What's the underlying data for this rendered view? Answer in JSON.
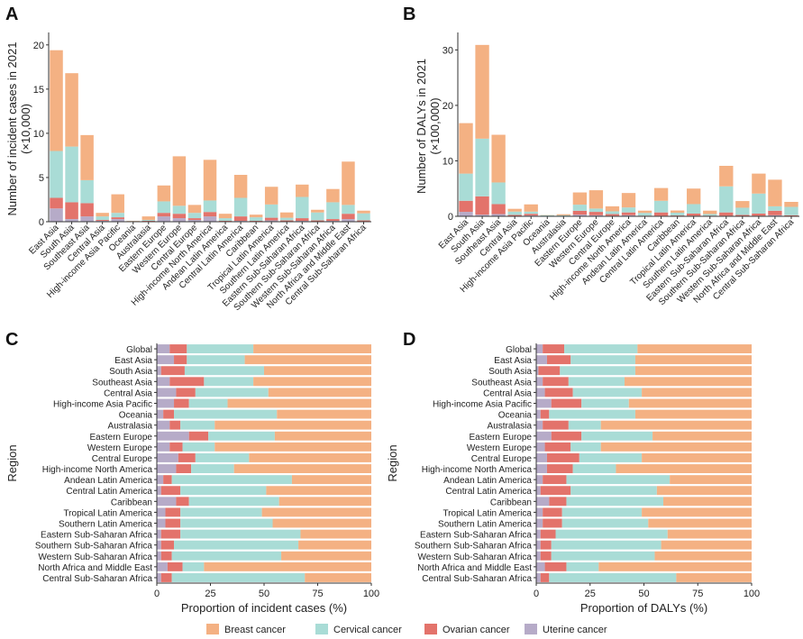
{
  "colors": {
    "Breast cancer": "#f4b183",
    "Cervical cancer": "#a9dcd6",
    "Ovarian cancer": "#e3736b",
    "Uterine cancer": "#b6abc8"
  },
  "legend": [
    "Breast cancer",
    "Cervical cancer",
    "Ovarian cancer",
    "Uterine cancer"
  ],
  "chart_data": [
    {
      "panel": "A",
      "type": "bar",
      "stacked": true,
      "ylabel": "Number of incident cases in 2021",
      "ylabel2": "(×10,000)",
      "ylim": [
        0,
        21
      ],
      "yticks": [
        0,
        5,
        10,
        15,
        20
      ],
      "categories": [
        "East Asia",
        "South Asia",
        "Southeast Asia",
        "Central Asia",
        "High-income Asia Pacific",
        "Oceania",
        "Australasia",
        "Eastern Europe",
        "Western Europe",
        "Central Europe",
        "High-income North America",
        "Andean Latin America",
        "Central Latin America",
        "Caribbean",
        "Tropical Latin America",
        "Southern Latin America",
        "Eastern Sub-Saharan Africa",
        "Southern Sub-Saharan Africa",
        "Western Sub-Saharan Africa",
        "North Africa and Middle East",
        "Central Sub-Saharan Africa"
      ],
      "series": [
        {
          "name": "Uterine cancer",
          "values": [
            1.5,
            0.3,
            0.6,
            0.1,
            0.3,
            0.0,
            0.05,
            0.6,
            0.4,
            0.2,
            0.6,
            0.05,
            0.1,
            0.05,
            0.15,
            0.05,
            0.1,
            0.05,
            0.1,
            0.3,
            0.05
          ]
        },
        {
          "name": "Ovarian cancer",
          "values": [
            1.2,
            1.9,
            1.5,
            0.1,
            0.2,
            0.02,
            0.05,
            0.4,
            0.5,
            0.2,
            0.5,
            0.05,
            0.5,
            0.05,
            0.3,
            0.1,
            0.3,
            0.1,
            0.2,
            0.6,
            0.1
          ]
        },
        {
          "name": "Cervical cancer",
          "values": [
            5.3,
            6.3,
            2.6,
            0.4,
            0.5,
            0.05,
            0.1,
            1.3,
            0.9,
            0.6,
            1.3,
            0.3,
            2.1,
            0.4,
            1.5,
            0.3,
            2.4,
            0.9,
            1.9,
            1.0,
            0.8
          ]
        },
        {
          "name": "Breast cancer",
          "values": [
            11.4,
            8.3,
            5.1,
            0.4,
            2.1,
            0.03,
            0.4,
            1.8,
            5.6,
            0.9,
            4.6,
            0.5,
            2.6,
            0.3,
            2.0,
            0.6,
            1.4,
            0.3,
            1.5,
            4.9,
            0.3
          ]
        }
      ]
    },
    {
      "panel": "B",
      "type": "bar",
      "stacked": true,
      "ylabel": "Number of DALYs in 2021",
      "ylabel2": "(×100,000)",
      "ylim": [
        0,
        32.5
      ],
      "yticks": [
        0,
        10,
        20,
        30
      ],
      "categories": [
        "East Asia",
        "South Asia",
        "Southeast Asia",
        "Central Asia",
        "High-income Asia Pacific",
        "Oceania",
        "Australasia",
        "Eastern Europe",
        "Western Europe",
        "Central Europe",
        "High-income North America",
        "Andean Latin America",
        "Central Latin America",
        "Caribbean",
        "Tropical Latin America",
        "Southern Latin America",
        "Eastern Sub-Saharan Africa",
        "Southern Sub-Saharan Africa",
        "Western Sub-Saharan Africa",
        "North Africa and Middle East",
        "Central Sub-Saharan Africa"
      ],
      "series": [
        {
          "name": "Uterine cancer",
          "values": [
            0.8,
            0.3,
            0.4,
            0.05,
            0.15,
            0.02,
            0.02,
            0.3,
            0.2,
            0.1,
            0.2,
            0.02,
            0.1,
            0.05,
            0.1,
            0.02,
            0.1,
            0.05,
            0.1,
            0.2,
            0.05
          ]
        },
        {
          "name": "Ovarian cancer",
          "values": [
            2.0,
            3.3,
            1.8,
            0.2,
            0.3,
            0.05,
            0.05,
            0.7,
            0.6,
            0.3,
            0.5,
            0.1,
            0.6,
            0.1,
            0.4,
            0.1,
            0.6,
            0.2,
            0.4,
            0.8,
            0.15
          ]
        },
        {
          "name": "Cervical cancer",
          "values": [
            4.9,
            10.4,
            3.9,
            0.6,
            0.4,
            0.1,
            0.1,
            1.1,
            0.6,
            0.5,
            0.9,
            0.5,
            2.1,
            0.5,
            1.7,
            0.3,
            4.7,
            1.3,
            3.6,
            0.8,
            1.5
          ]
        },
        {
          "name": "Breast cancer",
          "values": [
            9.1,
            16.9,
            8.6,
            0.5,
            1.3,
            0.05,
            0.2,
            2.2,
            3.3,
            0.9,
            2.6,
            0.4,
            2.3,
            0.4,
            2.8,
            0.6,
            3.7,
            1.2,
            3.6,
            4.8,
            0.9
          ]
        }
      ]
    },
    {
      "panel": "C",
      "type": "bar",
      "orientation": "horizontal",
      "stacked": true,
      "xlabel": "Proportion of incident cases (%)",
      "ylabel": "Region",
      "xlim": [
        0,
        100
      ],
      "xticks": [
        0,
        25,
        50,
        75,
        100
      ],
      "categories": [
        "Global",
        "East Asia",
        "South Asia",
        "Southeast Asia",
        "Central Asia",
        "High-income Asia Pacific",
        "Oceania",
        "Australasia",
        "Eastern Europe",
        "Western Europe",
        "Central Europe",
        "High-income North America",
        "Andean Latin America",
        "Central Latin America",
        "Caribbean",
        "Tropical Latin America",
        "Southern Latin America",
        "Eastern Sub-Saharan Africa",
        "Southern Sub-Saharan Africa",
        "Western Sub-Saharan Africa",
        "North Africa and Middle East",
        "Central Sub-Saharan Africa"
      ],
      "series": [
        {
          "name": "Uterine cancer",
          "values": [
            6,
            8,
            2,
            6,
            9,
            8,
            3,
            6,
            15,
            6,
            10,
            9,
            3,
            2,
            9,
            4,
            4,
            2,
            2,
            2,
            5,
            2
          ]
        },
        {
          "name": "Ovarian cancer",
          "values": [
            8,
            6,
            11,
            16,
            9,
            7,
            5,
            5,
            9,
            6,
            8,
            7,
            4,
            9,
            6,
            7,
            7,
            9,
            6,
            5,
            7,
            5
          ]
        },
        {
          "name": "Cervical cancer",
          "values": [
            31,
            27,
            37,
            23,
            34,
            18,
            48,
            16,
            31,
            15,
            25,
            20,
            56,
            40,
            42,
            38,
            43,
            56,
            58,
            51,
            10,
            62
          ]
        },
        {
          "name": "Breast cancer",
          "values": [
            55,
            59,
            50,
            55,
            48,
            67,
            44,
            73,
            45,
            73,
            57,
            64,
            37,
            49,
            43,
            51,
            46,
            33,
            34,
            42,
            78,
            31
          ]
        }
      ]
    },
    {
      "panel": "D",
      "type": "bar",
      "orientation": "horizontal",
      "stacked": true,
      "xlabel": "Proportion of DALYs (%)",
      "ylabel": "Region",
      "xlim": [
        0,
        100
      ],
      "xticks": [
        0,
        25,
        50,
        75,
        100
      ],
      "categories": [
        "Global",
        "East Asia",
        "South Asia",
        "Southeast Asia",
        "Central Asia",
        "High-income Asia Pacific",
        "Oceania",
        "Australasia",
        "Eastern Europe",
        "Western Europe",
        "Central Europe",
        "High-income North America",
        "Andean Latin America",
        "Central Latin America",
        "Caribbean",
        "Tropical Latin America",
        "Southern Latin America",
        "Eastern Sub-Saharan Africa",
        "Southern Sub-Saharan Africa",
        "Western Sub-Saharan Africa",
        "North Africa and Middle East",
        "Central Sub-Saharan Africa"
      ],
      "series": [
        {
          "name": "Uterine cancer",
          "values": [
            3,
            5,
            1,
            3,
            4,
            7,
            2,
            3,
            7,
            4,
            5,
            5,
            3,
            2,
            6,
            3,
            3,
            2,
            2,
            2,
            4,
            2
          ]
        },
        {
          "name": "Ovarian cancer",
          "values": [
            10,
            11,
            10,
            12,
            13,
            14,
            4,
            12,
            14,
            12,
            15,
            12,
            11,
            14,
            8,
            9,
            9,
            7,
            5,
            5,
            10,
            4
          ]
        },
        {
          "name": "Cervical cancer",
          "values": [
            34,
            30,
            35,
            26,
            32,
            22,
            40,
            15,
            33,
            14,
            29,
            20,
            48,
            40,
            45,
            37,
            40,
            52,
            51,
            48,
            15,
            59
          ]
        },
        {
          "name": "Breast cancer",
          "values": [
            53,
            54,
            54,
            59,
            51,
            57,
            54,
            70,
            46,
            70,
            51,
            63,
            38,
            44,
            41,
            51,
            48,
            39,
            42,
            45,
            71,
            35
          ]
        }
      ]
    }
  ]
}
